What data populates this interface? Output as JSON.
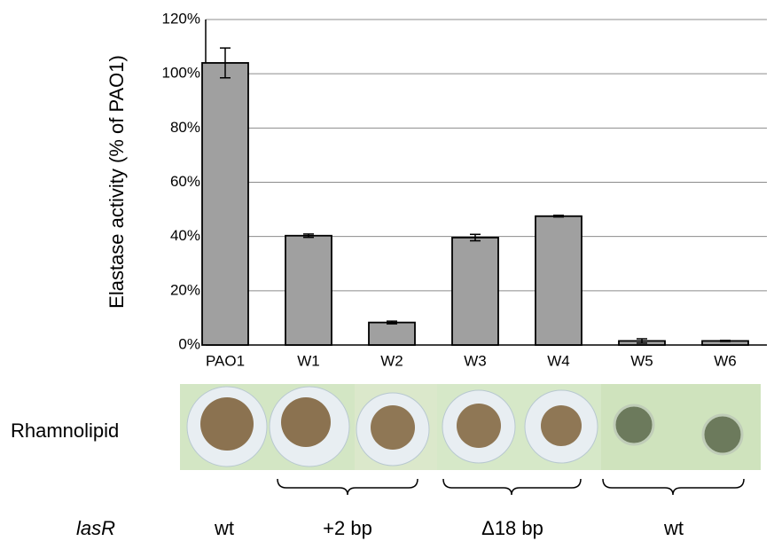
{
  "chart_data": {
    "type": "bar",
    "y_label": "Elastase activity (% of PAO1)",
    "categories": [
      "PAO1",
      "W1",
      "W2",
      "W3",
      "W4",
      "W5",
      "W6"
    ],
    "values": [
      104,
      40.3,
      8.3,
      39.6,
      47.5,
      1.5,
      1.5
    ],
    "errors": [
      5.5,
      0.6,
      0.5,
      1.2,
      0.3,
      0.8,
      0.2
    ],
    "color": "#a0a0a0",
    "ylim": [
      0,
      120
    ],
    "yticks": [
      {
        "value": 0,
        "label": "0%"
      },
      {
        "value": 20,
        "label": "20%"
      },
      {
        "value": 40,
        "label": "40%"
      },
      {
        "value": 60,
        "label": "60%"
      },
      {
        "value": 80,
        "label": "80%"
      },
      {
        "value": 100,
        "label": "100%"
      },
      {
        "value": 120,
        "label": "120%"
      }
    ],
    "grid": true
  },
  "rhamnolipid_label": "Rhamnolipid",
  "lasr_row": {
    "label": "lasR",
    "groups": [
      "wt",
      "+2 bp",
      "Δ18 bp",
      "wt"
    ]
  }
}
